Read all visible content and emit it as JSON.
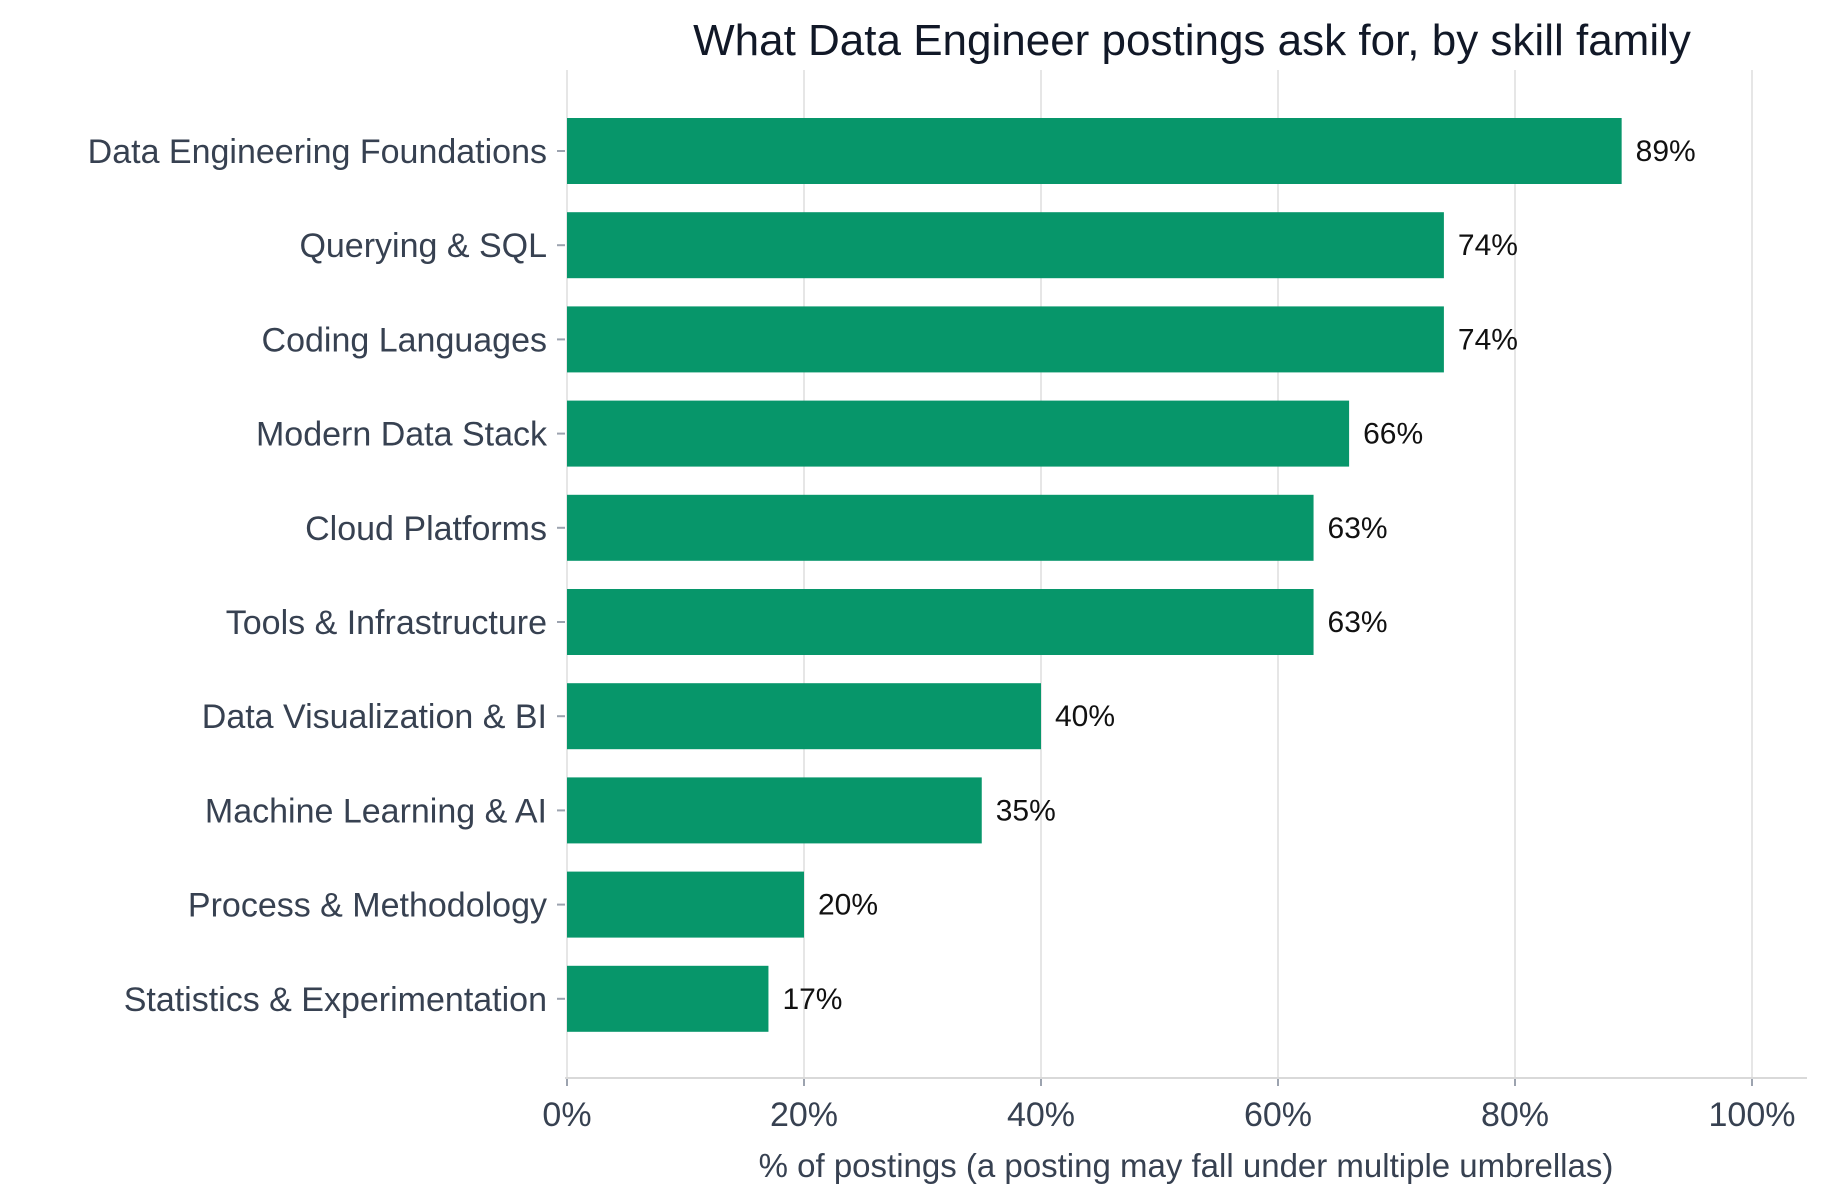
{
  "chart_data": {
    "type": "bar",
    "orientation": "horizontal",
    "title": "What Data Engineer postings ask for, by skill family",
    "xlabel": "% of postings (a posting may fall under multiple umbrellas)",
    "ylabel": "",
    "categories": [
      "Data Engineering Foundations",
      "Querying & SQL",
      "Coding Languages",
      "Modern Data Stack",
      "Cloud Platforms",
      "Tools & Infrastructure",
      "Data Visualization & BI",
      "Machine Learning & AI",
      "Process & Methodology",
      "Statistics & Experimentation"
    ],
    "values": [
      89,
      74,
      74,
      66,
      63,
      63,
      40,
      35,
      20,
      17
    ],
    "value_labels": [
      "89%",
      "74%",
      "74%",
      "66%",
      "63%",
      "63%",
      "40%",
      "35%",
      "20%",
      "17%"
    ],
    "xlim": [
      0,
      100
    ],
    "xticks": [
      0,
      20,
      40,
      60,
      80,
      100
    ],
    "xtick_labels": [
      "0%",
      "20%",
      "40%",
      "60%",
      "80%",
      "100%"
    ],
    "grid": "vertical",
    "legend": "none",
    "colors": {
      "bar": "#07966a",
      "grid": "#e6e6e6",
      "axis": "#d9d9d9",
      "title": "#111827",
      "text": "#374151"
    }
  }
}
